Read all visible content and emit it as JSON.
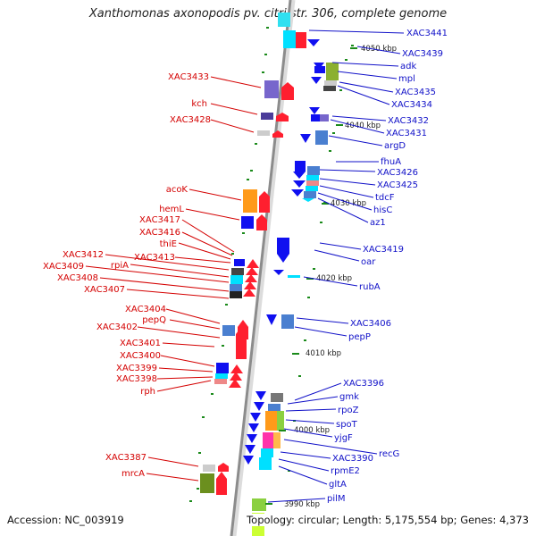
{
  "title": "Xanthomonas axonopodis pv. citri str. 306, complete genome",
  "footer": {
    "accession": "Accession: NC_003919",
    "topology": "Topology: circular; Length: 5,175,554 bp; Genes: 4,373"
  },
  "ticks": [
    "4050 kbp",
    "4040 kbp",
    "4030 kbp",
    "4020 kbp",
    "4010 kbp",
    "4000 kbp",
    "3990 kbp"
  ],
  "left_labels": [
    "XAC3433",
    "kch",
    "XAC3428",
    "acoK",
    "hemL",
    "XAC3417",
    "XAC3416",
    "thiE",
    "XAC3413",
    "XAC3412",
    "rpiA",
    "XAC3409",
    "XAC3408",
    "XAC3407",
    "XAC3404",
    "pepQ",
    "XAC3402",
    "XAC3401",
    "XAC3400",
    "XAC3399",
    "XAC3398",
    "rph",
    "XAC3387",
    "mrcA"
  ],
  "right_labels": [
    "XAC3441",
    "XAC3439",
    "adk",
    "mpl",
    "XAC3435",
    "XAC3434",
    "XAC3432",
    "XAC3431",
    "argD",
    "fhuA",
    "XAC3426",
    "XAC3425",
    "tdcF",
    "hisC",
    "az1",
    "XAC3419",
    "oar",
    "rubA",
    "XAC3406",
    "pepP",
    "XAC3396",
    "gmk",
    "rpoZ",
    "spoT",
    "yjgF",
    "recG",
    "XAC3390",
    "rpmE2",
    "gltA",
    "pilM"
  ],
  "colors": {
    "left_label": "#d40000",
    "right_label": "#1010c8"
  }
}
